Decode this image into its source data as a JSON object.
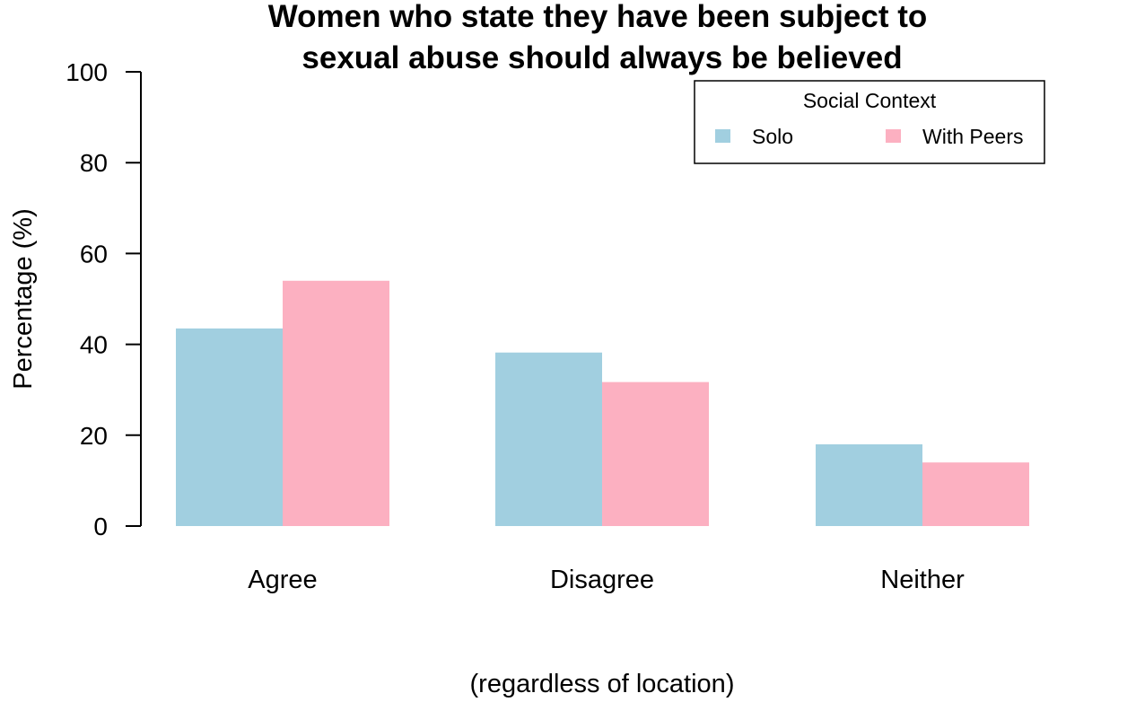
{
  "chart_data": {
    "type": "bar",
    "title_lines": [
      "Women who state they have been subject to",
      "sexual abuse should always be believed"
    ],
    "xlabel": "(regardless of location)",
    "ylabel": "Percentage (%)",
    "categories": [
      "Agree",
      "Disagree",
      "Neither"
    ],
    "series": [
      {
        "name": "Solo",
        "color": "#a1cfe0",
        "values": [
          43.5,
          38.2,
          18.0
        ]
      },
      {
        "name": "With Peers",
        "color": "#fcb0c1",
        "values": [
          54.0,
          31.7,
          14.0
        ]
      }
    ],
    "ylim": [
      0,
      100
    ],
    "yticks": [
      "0",
      "20",
      "40",
      "60",
      "80",
      "100"
    ],
    "grid": false,
    "legend": {
      "title": "Social Context",
      "placement": "top-right"
    }
  }
}
